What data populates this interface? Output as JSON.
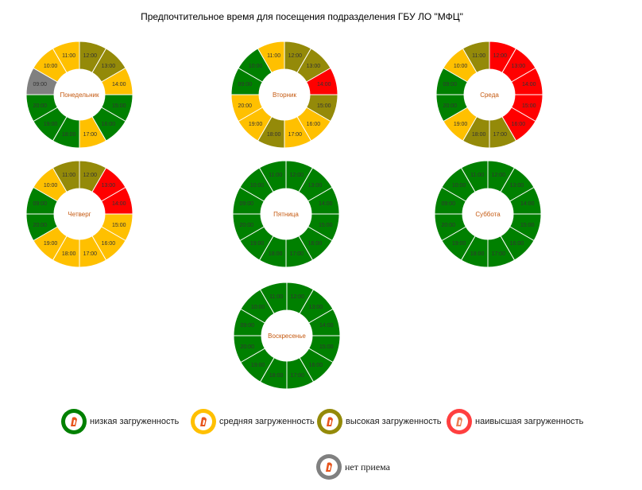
{
  "title": "Предпочтительное время для посещения подразделения ГБУ ЛО \"МФЦ\"",
  "colors": {
    "low": "#008000",
    "medium": "#FFC000",
    "high": "#948A09",
    "highest": "#FF0000",
    "closed": "#808080",
    "day_label": "#C55A11"
  },
  "legend": [
    {
      "key": "low",
      "label": "низкая загруженность"
    },
    {
      "key": "medium",
      "label": "средняя загруженность"
    },
    {
      "key": "high",
      "label": "высокая загруженность"
    },
    {
      "key": "highest",
      "label": "наивысшая загруженность"
    },
    {
      "key": "closed",
      "label": "нет приема"
    }
  ],
  "chart_data": {
    "type": "donut",
    "hours": [
      "12:00",
      "13:00",
      "14:00",
      "15:00",
      "16:00",
      "17:00",
      "18:00",
      "19:00",
      "20:00",
      "09:00",
      "10:00",
      "11:00"
    ],
    "days": [
      {
        "name": "Понедельник",
        "load": [
          "high",
          "high",
          "medium",
          "low",
          "low",
          "medium",
          "low",
          "low",
          "low",
          "closed",
          "medium",
          "medium"
        ]
      },
      {
        "name": "Вторник",
        "load": [
          "high",
          "high",
          "highest",
          "high",
          "medium",
          "medium",
          "high",
          "medium",
          "medium",
          "low",
          "low",
          "medium"
        ]
      },
      {
        "name": "Среда",
        "load": [
          "highest",
          "highest",
          "highest",
          "highest",
          "highest",
          "high",
          "high",
          "medium",
          "low",
          "low",
          "medium",
          "high"
        ]
      },
      {
        "name": "Четверг",
        "load": [
          "high",
          "highest",
          "highest",
          "medium",
          "medium",
          "medium",
          "medium",
          "medium",
          "low",
          "low",
          "medium",
          "high"
        ]
      },
      {
        "name": "Пятница",
        "load": [
          "low",
          "low",
          "low",
          "low",
          "low",
          "low",
          "low",
          "low",
          "low",
          "low",
          "low",
          "low"
        ]
      },
      {
        "name": "Суббота",
        "load": [
          "low",
          "low",
          "low",
          "low",
          "low",
          "low",
          "low",
          "low",
          "low",
          "low",
          "low",
          "low"
        ]
      },
      {
        "name": "Воскресенье",
        "load": [
          "low",
          "low",
          "low",
          "low",
          "low",
          "low",
          "low",
          "low",
          "low",
          "low",
          "low",
          "low"
        ]
      }
    ]
  }
}
